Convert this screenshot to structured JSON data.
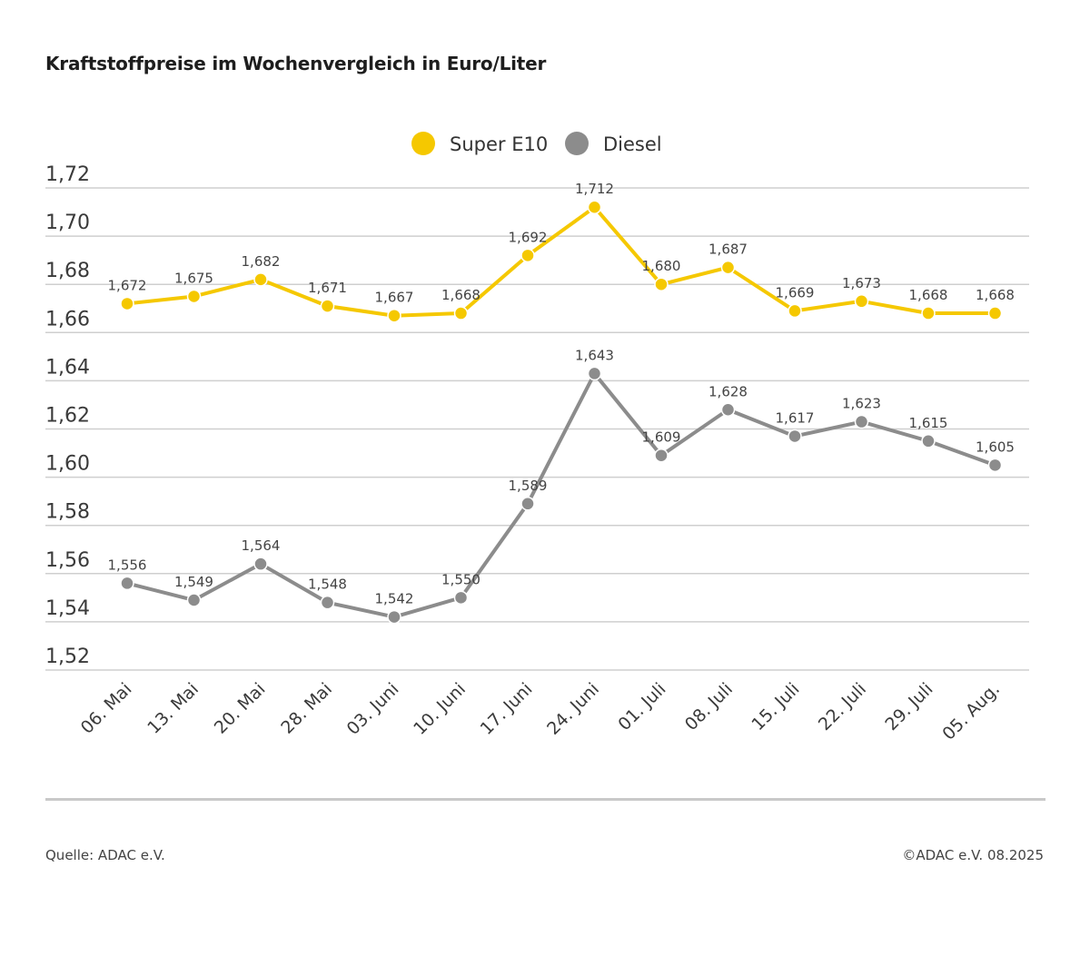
{
  "title": "Kraftstoffpreise im Wochenvergleich in Euro/Liter",
  "footer": {
    "source": "Quelle: ADAC e.V.",
    "copyright": "©ADAC e.V. 08.2025"
  },
  "chart_data": {
    "type": "line",
    "categories": [
      "06. Mai",
      "13. Mai",
      "20. Mai",
      "28. Mai",
      "03. Juni",
      "10. Juni",
      "17. Juni",
      "24. Juni",
      "01. Juli",
      "08. Juli",
      "15. Juli",
      "22. Juli",
      "29. Juli",
      "05. Aug."
    ],
    "series": [
      {
        "name": "Super E10",
        "color": "#f5c800",
        "values": [
          1.672,
          1.675,
          1.682,
          1.671,
          1.667,
          1.668,
          1.692,
          1.712,
          1.68,
          1.687,
          1.669,
          1.673,
          1.668,
          1.668
        ],
        "labels": [
          "1,672",
          "1,675",
          "1,682",
          "1,671",
          "1,667",
          "1,668",
          "1,692",
          "1,712",
          "1,680",
          "1,687",
          "1,669",
          "1,673",
          "1,668",
          "1,668"
        ]
      },
      {
        "name": "Diesel",
        "color": "#8c8c8c",
        "values": [
          1.556,
          1.549,
          1.564,
          1.548,
          1.542,
          1.55,
          1.589,
          1.643,
          1.609,
          1.628,
          1.617,
          1.623,
          1.615,
          1.605
        ],
        "labels": [
          "1,556",
          "1,549",
          "1,564",
          "1,548",
          "1,542",
          "1,550",
          "1,589",
          "1,643",
          "1,609",
          "1,628",
          "1,617",
          "1,623",
          "1,615",
          "1,605"
        ]
      }
    ],
    "yticks": [
      "1,72",
      "1,70",
      "1,68",
      "1,66",
      "1,64",
      "1,62",
      "1,60",
      "1,58",
      "1,56",
      "1,54",
      "1,52"
    ],
    "ytick_values": [
      1.72,
      1.7,
      1.68,
      1.66,
      1.64,
      1.62,
      1.6,
      1.58,
      1.56,
      1.54,
      1.52
    ],
    "ylim": [
      1.52,
      1.72
    ],
    "grid": true,
    "legend_position": "top-center",
    "xlabel": "",
    "ylabel": ""
  }
}
